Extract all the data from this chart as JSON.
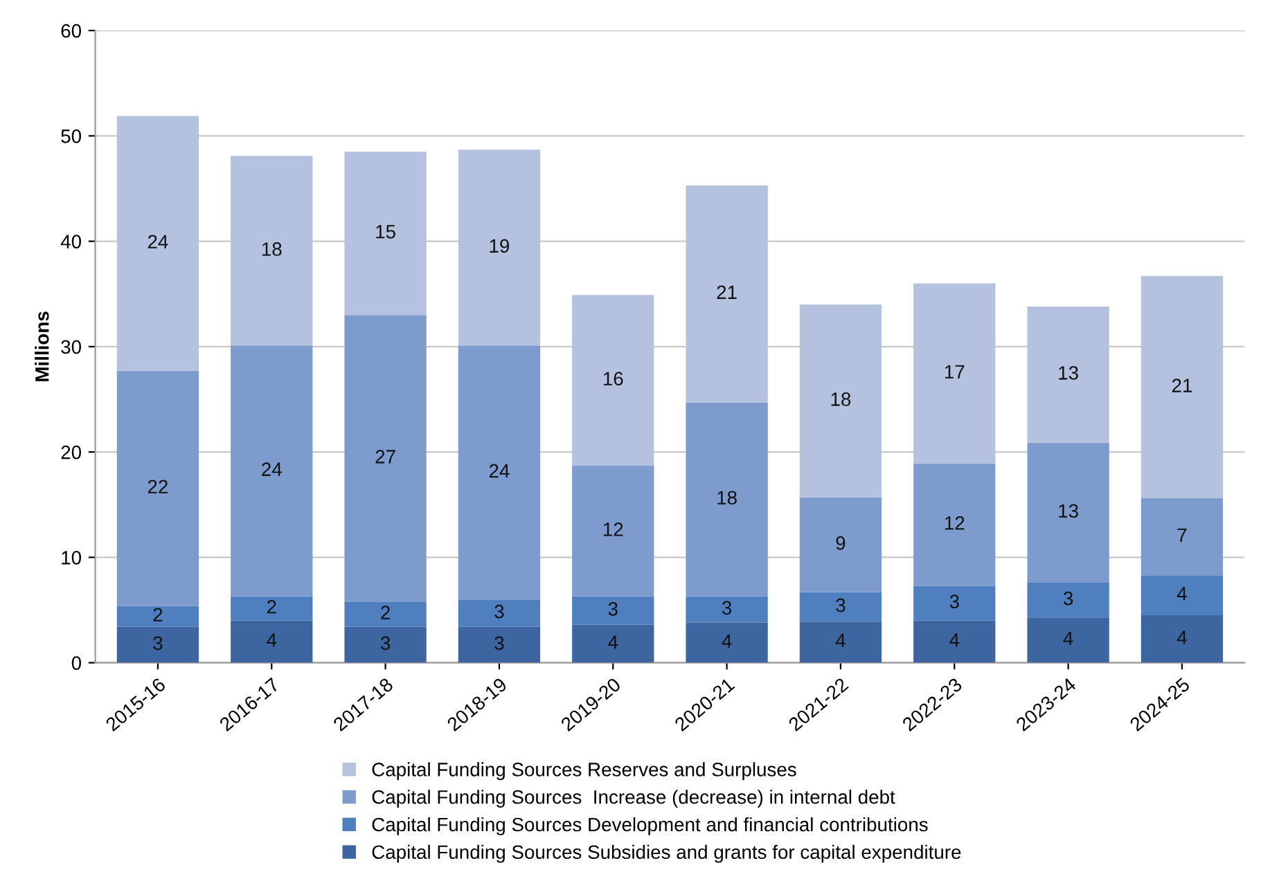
{
  "chart_data": {
    "type": "bar",
    "stacked": true,
    "ylabel": "Millions",
    "categories": [
      "2015-16",
      "2016-17",
      "2017-18",
      "2018-19",
      "2019-20",
      "2020-21",
      "2021-22",
      "2022-23",
      "2023-24",
      "2024-25"
    ],
    "series": [
      {
        "name": "Capital Funding Sources Subsidies and grants for capital expenditure",
        "color": "#3d65a0",
        "values": [
          3.4,
          4.0,
          3.4,
          3.4,
          3.6,
          3.8,
          3.9,
          4.0,
          4.3,
          4.5
        ],
        "value_labels": [
          "3",
          "4",
          "3",
          "3",
          "4",
          "4",
          "4",
          "4",
          "4",
          "4"
        ]
      },
      {
        "name": "Capital Funding Sources Development and financial contributions",
        "color": "#4f7fbf",
        "values": [
          2.0,
          2.3,
          2.4,
          2.6,
          2.7,
          2.5,
          2.8,
          3.3,
          3.3,
          3.8
        ],
        "value_labels": [
          "2",
          "2",
          "2",
          "3",
          "3",
          "3",
          "3",
          "3",
          "3",
          "4"
        ]
      },
      {
        "name": "Capital Funding Sources  Increase (decrease) in internal debt",
        "color": "#7d9bcc",
        "values": [
          22.3,
          23.8,
          27.2,
          24.1,
          12.4,
          18.4,
          9.0,
          11.6,
          13.3,
          7.3
        ],
        "value_labels": [
          "22",
          "24",
          "27",
          "24",
          "12",
          "18",
          "9",
          "12",
          "13",
          "7"
        ]
      },
      {
        "name": "Capital Funding Sources Reserves and Surpluses",
        "color": "#b4c2e0",
        "values": [
          24.2,
          18.0,
          15.5,
          18.6,
          16.2,
          20.6,
          18.3,
          17.1,
          12.9,
          21.1
        ],
        "value_labels": [
          "24",
          "18",
          "15",
          "19",
          "16",
          "21",
          "18",
          "17",
          "13",
          "21"
        ]
      }
    ],
    "ylim": [
      0,
      60
    ],
    "yticks": [
      0,
      10,
      20,
      30,
      40,
      50,
      60
    ],
    "grid": "y",
    "legend": "bottom"
  }
}
